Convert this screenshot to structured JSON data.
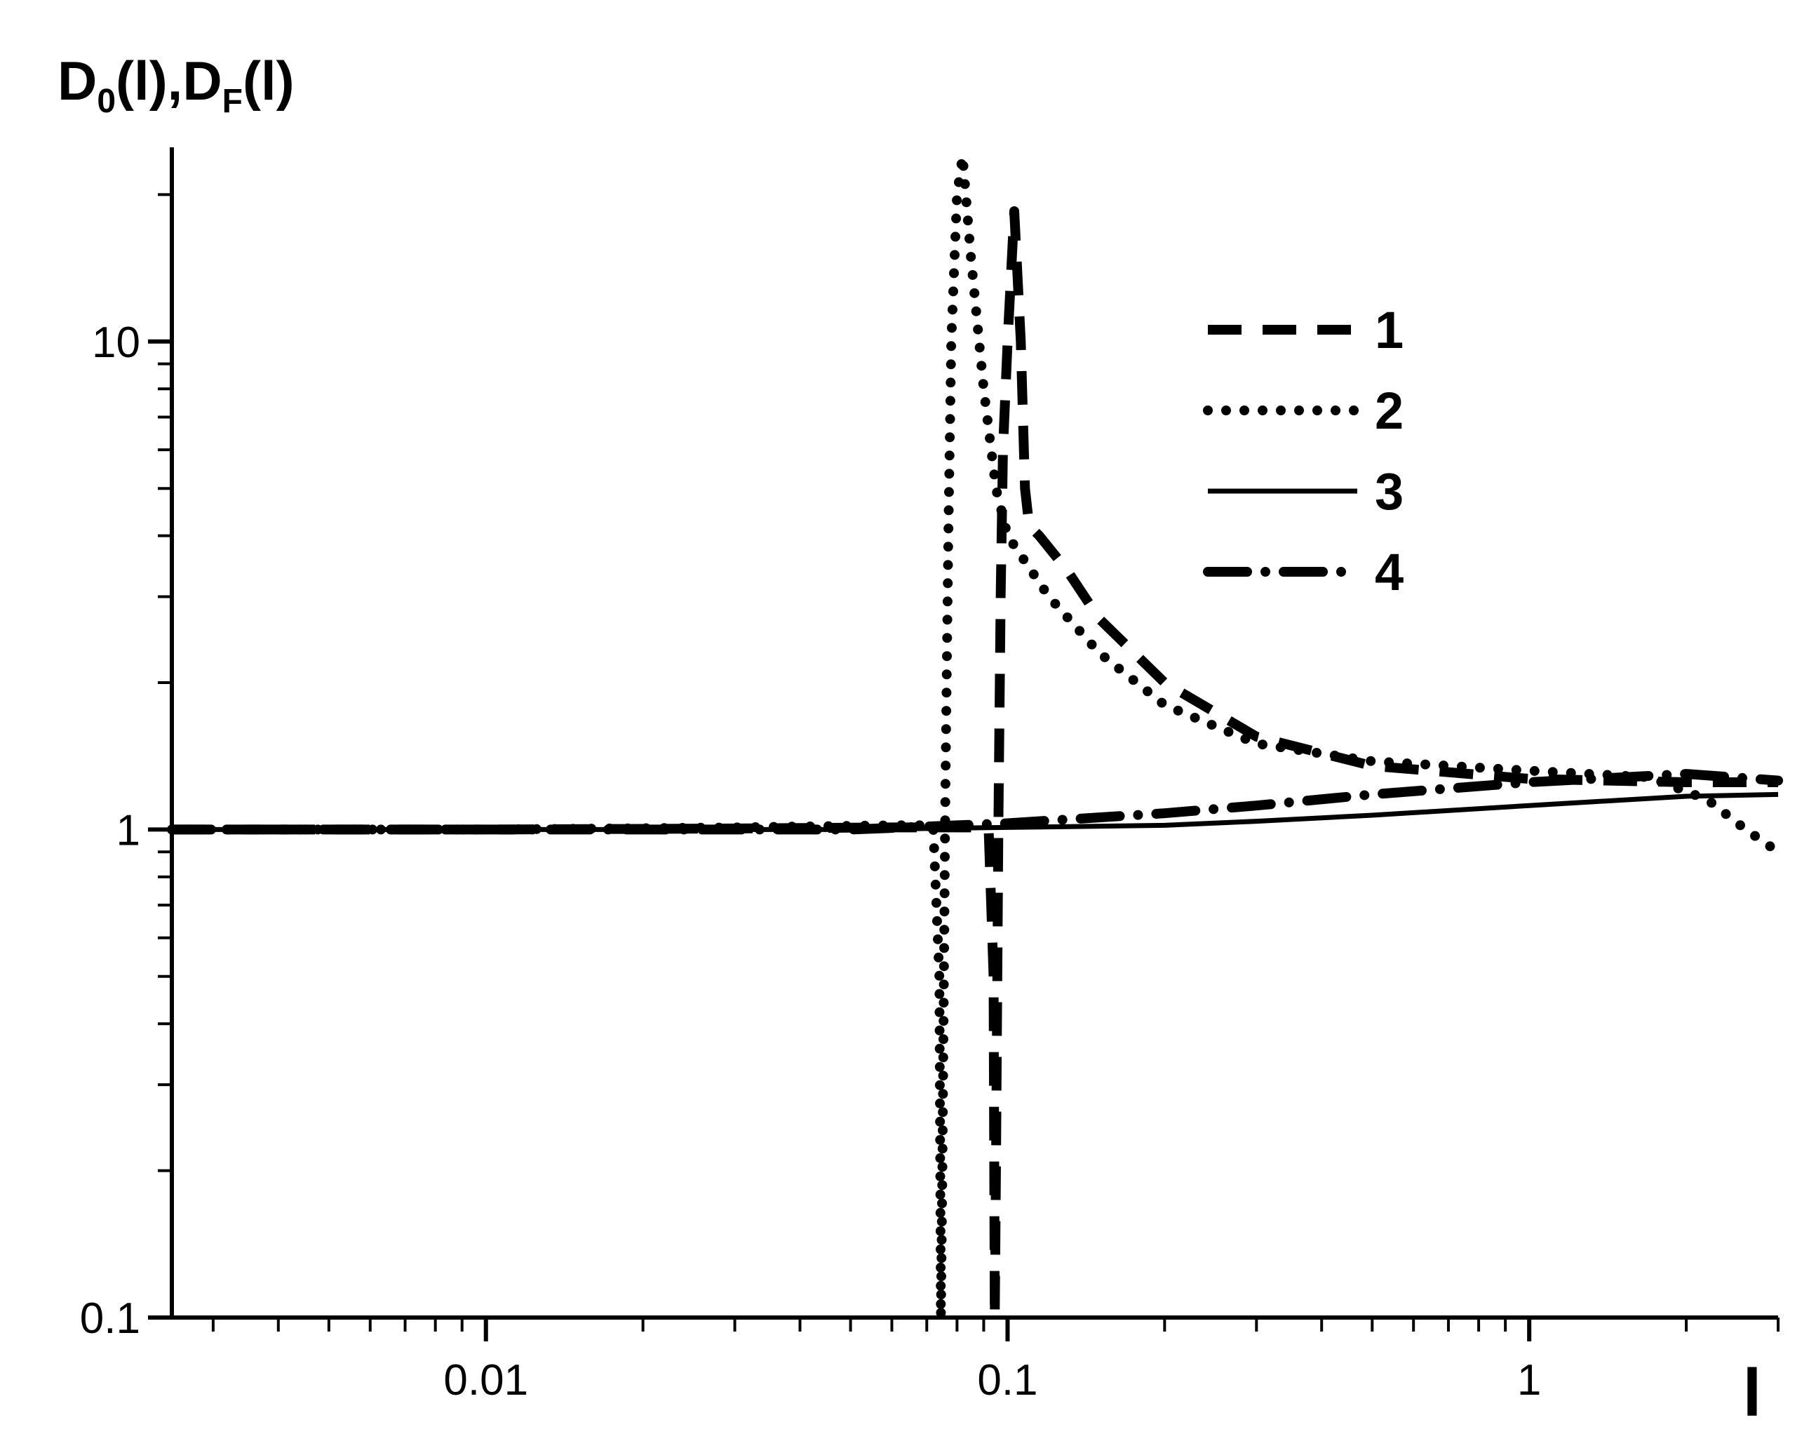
{
  "chart_data": {
    "type": "line",
    "title": "",
    "ylabel": {
      "parts": [
        "D",
        "0",
        "(l),D",
        "F",
        "(l)"
      ]
    },
    "xlabel": "l",
    "x_scale": "log",
    "y_scale": "log",
    "xlim": [
      0.0025,
      3.0
    ],
    "ylim": [
      0.1,
      25
    ],
    "x_ticks": [
      {
        "value": 0.01,
        "label": "0.01"
      },
      {
        "value": 0.1,
        "label": "0.1"
      },
      {
        "value": 1,
        "label": "1"
      }
    ],
    "y_ticks": [
      {
        "value": 0.1,
        "label": "0.1"
      },
      {
        "value": 1,
        "label": "1"
      },
      {
        "value": 10,
        "label": "10"
      }
    ],
    "legend_position": "top-right",
    "series": [
      {
        "name": "1",
        "style": "dashed",
        "points": [
          [
            0.0025,
            1.0
          ],
          [
            0.01,
            1.0
          ],
          [
            0.03,
            1.005
          ],
          [
            0.06,
            1.01
          ],
          [
            0.085,
            1.01
          ],
          [
            0.092,
            1.0
          ],
          [
            0.094,
            0.5
          ],
          [
            0.0945,
            0.1
          ],
          [
            0.095,
            0.2
          ],
          [
            0.096,
            1.0
          ],
          [
            0.097,
            3.0
          ],
          [
            0.098,
            6.0
          ],
          [
            0.1,
            10.0
          ],
          [
            0.103,
            18.5
          ],
          [
            0.106,
            10.0
          ],
          [
            0.108,
            5.0
          ],
          [
            0.11,
            4.2
          ],
          [
            0.115,
            4.0
          ],
          [
            0.13,
            3.4
          ],
          [
            0.15,
            2.7
          ],
          [
            0.2,
            2.0
          ],
          [
            0.3,
            1.55
          ],
          [
            0.5,
            1.35
          ],
          [
            1.0,
            1.27
          ],
          [
            2.0,
            1.25
          ],
          [
            3.0,
            1.25
          ]
        ]
      },
      {
        "name": "2",
        "style": "dotted",
        "points": [
          [
            0.0025,
            1.0
          ],
          [
            0.01,
            1.0
          ],
          [
            0.03,
            1.01
          ],
          [
            0.06,
            1.02
          ],
          [
            0.072,
            1.02
          ],
          [
            0.074,
            0.5
          ],
          [
            0.0745,
            0.1
          ],
          [
            0.075,
            0.2
          ],
          [
            0.076,
            1.2
          ],
          [
            0.077,
            4.0
          ],
          [
            0.078,
            10.0
          ],
          [
            0.08,
            20.0
          ],
          [
            0.082,
            24.0
          ],
          [
            0.085,
            15.0
          ],
          [
            0.09,
            8.0
          ],
          [
            0.095,
            5.0
          ],
          [
            0.1,
            4.0
          ],
          [
            0.12,
            3.0
          ],
          [
            0.15,
            2.3
          ],
          [
            0.2,
            1.8
          ],
          [
            0.3,
            1.5
          ],
          [
            0.5,
            1.38
          ],
          [
            1.0,
            1.32
          ],
          [
            1.7,
            1.28
          ],
          [
            2.2,
            1.15
          ],
          [
            2.6,
            1.0
          ],
          [
            3.0,
            0.9
          ]
        ]
      },
      {
        "name": "3",
        "style": "solid",
        "points": [
          [
            0.0025,
            1.0
          ],
          [
            0.01,
            1.0
          ],
          [
            0.05,
            1.0
          ],
          [
            0.1,
            1.01
          ],
          [
            0.2,
            1.02
          ],
          [
            0.3,
            1.04
          ],
          [
            0.5,
            1.07
          ],
          [
            1.0,
            1.12
          ],
          [
            2.0,
            1.17
          ],
          [
            3.0,
            1.18
          ]
        ]
      },
      {
        "name": "4",
        "style": "dashdot",
        "points": [
          [
            0.0025,
            1.0
          ],
          [
            0.01,
            1.0
          ],
          [
            0.05,
            1.0
          ],
          [
            0.1,
            1.03
          ],
          [
            0.2,
            1.08
          ],
          [
            0.3,
            1.12
          ],
          [
            0.5,
            1.18
          ],
          [
            1.0,
            1.25
          ],
          [
            2.0,
            1.3
          ],
          [
            3.0,
            1.26
          ]
        ]
      }
    ]
  }
}
